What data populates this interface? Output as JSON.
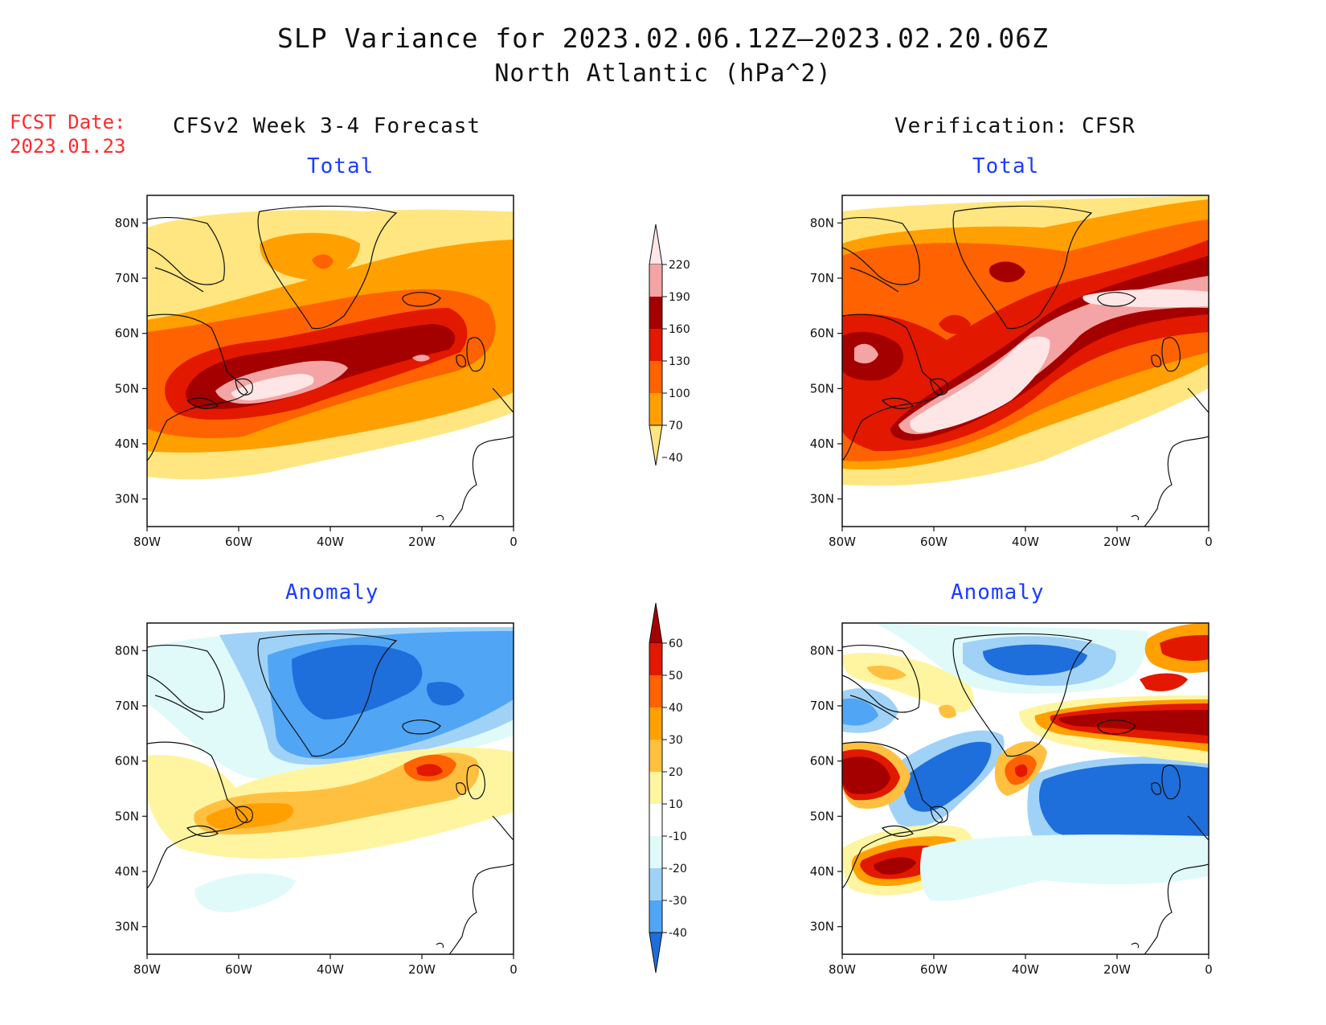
{
  "title": {
    "line1": "SLP Variance for 2023.02.06.12Z—2023.02.20.06Z",
    "line2": "North Atlantic (hPa^2)"
  },
  "fcst": {
    "label": "FCST Date:",
    "date": "2023.01.23"
  },
  "columns": {
    "left": "CFSv2 Week 3-4 Forecast",
    "right": "Verification: CFSR"
  },
  "panels": {
    "fc_total": {
      "subtitle": "Total"
    },
    "vf_total": {
      "subtitle": "Total"
    },
    "fc_anom": {
      "subtitle": "Anomaly"
    },
    "vf_anom": {
      "subtitle": "Anomaly"
    }
  },
  "axes": {
    "x_ticks": [
      "80W",
      "60W",
      "40W",
      "20W",
      "0"
    ],
    "y_ticks": [
      "80N",
      "70N",
      "60N",
      "50N",
      "40N",
      "30N"
    ],
    "lon_range": [
      -80,
      0
    ],
    "lat_range": [
      25,
      85
    ]
  },
  "colorbar_total": {
    "levels": [
      "220",
      "190",
      "160",
      "130",
      "100",
      "70",
      "40"
    ],
    "colors": [
      "#ffe6e6",
      "#f4a4a4",
      "#a50000",
      "#e21800",
      "#ff6200",
      "#ffa000",
      "#ffe680"
    ]
  },
  "colorbar_anom": {
    "levels": [
      "60",
      "50",
      "40",
      "30",
      "20",
      "10",
      "-10",
      "-20",
      "-30",
      "-40"
    ],
    "colors": [
      "#a50000",
      "#e21800",
      "#ff6200",
      "#ffa000",
      "#ffc040",
      "#fff5a0",
      "#ffffff",
      "#e0fafa",
      "#a0d2f7",
      "#50a5f5",
      "#1e6edc"
    ]
  }
}
